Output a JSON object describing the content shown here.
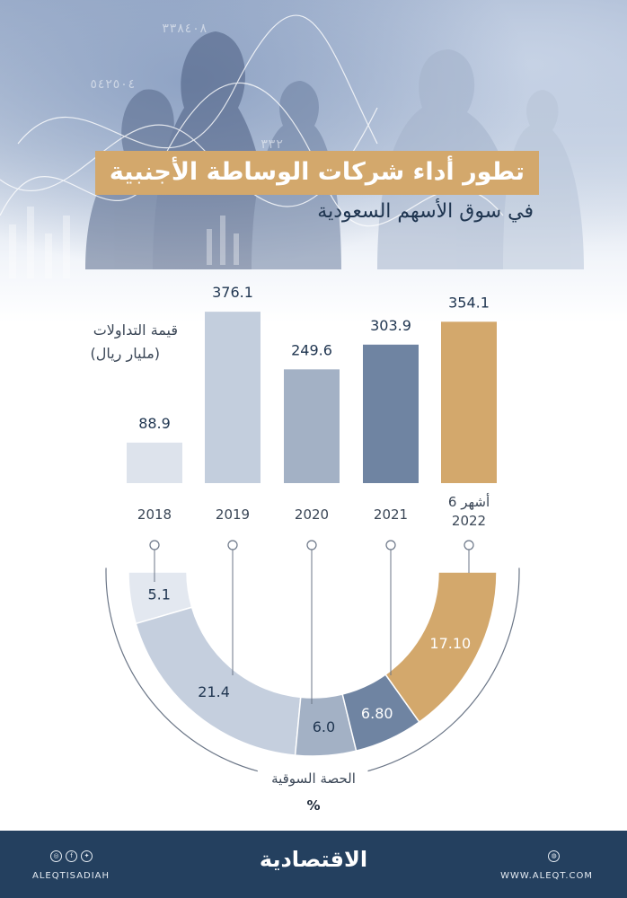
{
  "header": {
    "title": "تطور أداء شركات الوساطة الأجنبية",
    "subtitle": "في سوق الأسهم السعودية"
  },
  "chart_data": [
    {
      "type": "bar",
      "title": "قيمة التداولات",
      "unit_label": "(مليار ريال)",
      "categories": [
        "2018",
        "2019",
        "2020",
        "2021",
        "6 أشهر 2022"
      ],
      "category_lines": [
        [
          "2018"
        ],
        [
          "2019"
        ],
        [
          "2020"
        ],
        [
          "2021"
        ],
        [
          "6 أشهر",
          "2022"
        ]
      ],
      "values": [
        88.9,
        376.1,
        249.6,
        303.9,
        354.1
      ],
      "value_labels": [
        "88.9",
        "376.1",
        "249.6",
        "303.9",
        "354.1"
      ],
      "colors": [
        "#dde3ec",
        "#c3cedd",
        "#a3b1c5",
        "#6f84a2",
        "#d3a86c"
      ],
      "ylim": [
        0,
        400
      ]
    },
    {
      "type": "pie",
      "title": "الحصة السوقية",
      "unit": "%",
      "categories": [
        "2018",
        "2019",
        "2020",
        "2021",
        "6 أشهر 2022"
      ],
      "values": [
        5.1,
        21.4,
        6.0,
        6.8,
        17.1
      ],
      "value_labels": [
        "5.1",
        "21.4",
        "6.0",
        "6.80",
        "17.10"
      ],
      "colors": [
        "#e3e8f0",
        "#c5cfde",
        "#a3b1c5",
        "#6f84a2",
        "#d3a86c"
      ],
      "label_colors": [
        "#1f3550",
        "#1f3550",
        "#1f3550",
        "#ffffff",
        "#ffffff"
      ]
    }
  ],
  "footer": {
    "brand": "الاقتصادية",
    "handle": "ALEQTISADIAH",
    "website": "WWW.ALEQT.COM",
    "social_icons": [
      "instagram-icon",
      "facebook-icon",
      "twitter-icon"
    ],
    "web_icon": "globe-icon"
  }
}
